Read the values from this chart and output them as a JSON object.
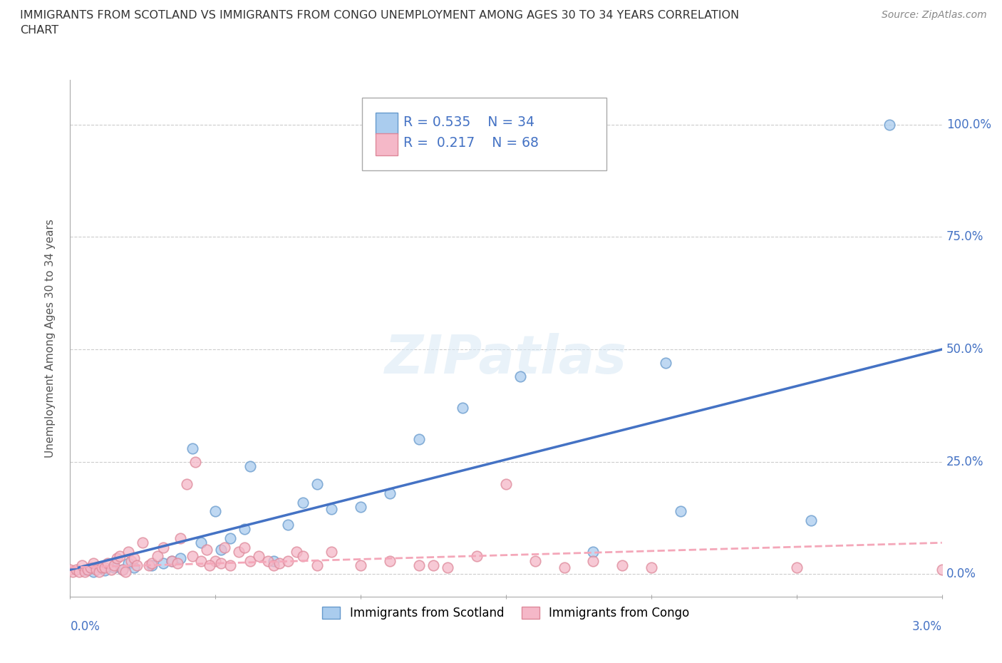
{
  "title": "IMMIGRANTS FROM SCOTLAND VS IMMIGRANTS FROM CONGO UNEMPLOYMENT AMONG AGES 30 TO 34 YEARS CORRELATION\nCHART",
  "source_text": "Source: ZipAtlas.com",
  "xlabel_bottom_left": "0.0%",
  "xlabel_bottom_right": "3.0%",
  "ylabel": "Unemployment Among Ages 30 to 34 years",
  "ytick_labels": [
    "0.0%",
    "25.0%",
    "50.0%",
    "75.0%",
    "100.0%"
  ],
  "ytick_values": [
    0,
    25,
    50,
    75,
    100
  ],
  "legend_bottom_labels": [
    "Immigrants from Scotland",
    "Immigrants from Congo"
  ],
  "scotland_color": "#aaccee",
  "congo_color": "#f5b8c8",
  "scotland_edge_color": "#6699cc",
  "congo_edge_color": "#dd8899",
  "scotland_line_color": "#4472c4",
  "congo_line_color": "#f4a7b9",
  "label_color": "#4472c4",
  "watermark": "ZIPatlas",
  "background_color": "#ffffff",
  "grid_color": "#cccccc",
  "xmin": 0.0,
  "xmax": 3.0,
  "ymin": -5,
  "ymax": 110,
  "scotland_scatter_x": [
    0.05,
    0.08,
    0.1,
    0.12,
    0.15,
    0.18,
    0.2,
    0.22,
    0.28,
    0.32,
    0.35,
    0.38,
    0.42,
    0.45,
    0.5,
    0.52,
    0.55,
    0.6,
    0.62,
    0.7,
    0.75,
    0.8,
    0.85,
    0.9,
    1.0,
    1.1,
    1.2,
    1.35,
    1.55,
    1.8,
    2.05,
    2.1,
    2.55,
    2.82
  ],
  "scotland_scatter_y": [
    1.0,
    0.5,
    1.5,
    0.8,
    1.5,
    1.0,
    2.5,
    1.5,
    2.0,
    2.5,
    3.0,
    3.5,
    28.0,
    7.0,
    14.0,
    5.5,
    8.0,
    10.0,
    24.0,
    3.0,
    11.0,
    16.0,
    20.0,
    14.5,
    15.0,
    18.0,
    30.0,
    37.0,
    44.0,
    5.0,
    47.0,
    14.0,
    12.0,
    100.0
  ],
  "congo_scatter_x": [
    0.0,
    0.01,
    0.02,
    0.03,
    0.04,
    0.05,
    0.06,
    0.07,
    0.08,
    0.09,
    0.1,
    0.11,
    0.12,
    0.13,
    0.14,
    0.15,
    0.16,
    0.17,
    0.18,
    0.19,
    0.2,
    0.21,
    0.22,
    0.23,
    0.25,
    0.27,
    0.28,
    0.3,
    0.32,
    0.35,
    0.37,
    0.38,
    0.4,
    0.42,
    0.45,
    0.47,
    0.5,
    0.52,
    0.55,
    0.58,
    0.6,
    0.62,
    0.65,
    0.68,
    0.7,
    0.72,
    0.75,
    0.78,
    0.8,
    0.85,
    0.9,
    1.0,
    1.1,
    1.2,
    1.3,
    1.4,
    1.5,
    1.6,
    1.7,
    1.8,
    1.9,
    2.0,
    2.5,
    3.0,
    0.43,
    0.48,
    0.53,
    1.25
  ],
  "congo_scatter_y": [
    1.0,
    0.5,
    1.0,
    0.5,
    2.0,
    0.5,
    1.0,
    1.5,
    2.5,
    1.0,
    0.5,
    1.5,
    1.5,
    2.5,
    1.0,
    2.0,
    3.5,
    4.0,
    1.0,
    0.5,
    5.0,
    3.0,
    3.5,
    2.0,
    7.0,
    2.0,
    2.5,
    4.0,
    6.0,
    3.0,
    2.5,
    8.0,
    20.0,
    4.0,
    3.0,
    5.5,
    3.0,
    2.5,
    2.0,
    5.0,
    6.0,
    3.0,
    4.0,
    3.0,
    2.0,
    2.5,
    3.0,
    5.0,
    4.0,
    2.0,
    5.0,
    2.0,
    3.0,
    2.0,
    1.5,
    4.0,
    20.0,
    3.0,
    1.5,
    3.0,
    2.0,
    1.5,
    1.5,
    1.0,
    25.0,
    2.0,
    6.0,
    2.0
  ],
  "scotland_trend_x": [
    0.0,
    3.0
  ],
  "scotland_trend_y": [
    1.0,
    50.0
  ],
  "congo_trend_x": [
    0.0,
    3.0
  ],
  "congo_trend_y": [
    1.5,
    7.0
  ]
}
